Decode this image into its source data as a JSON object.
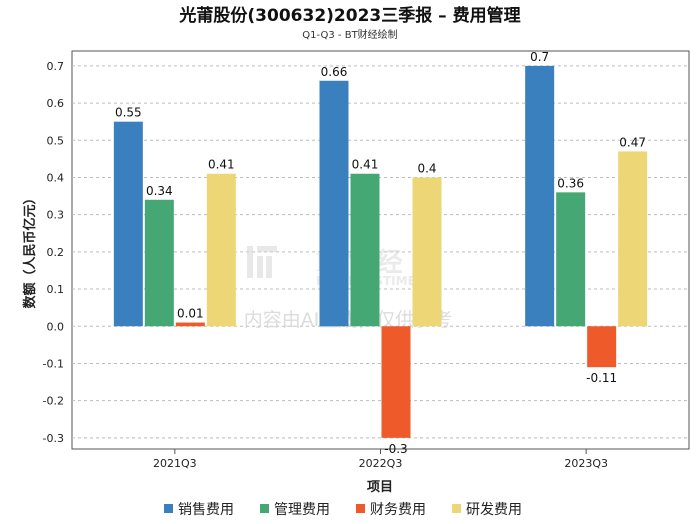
{
  "chart_data": {
    "type": "bar",
    "title": "光莆股份(300632)2023三季报 – 费用管理",
    "subtitle": "Q1-Q3 - BT财经绘制",
    "xlabel": "项目",
    "ylabel": "数额（人民币亿元）",
    "categories": [
      "2021Q3",
      "2022Q3",
      "2023Q3"
    ],
    "series": [
      {
        "name": "销售费用",
        "color": "#3a80bf",
        "values": [
          0.55,
          0.66,
          0.7
        ]
      },
      {
        "name": "管理费用",
        "color": "#45a874",
        "values": [
          0.34,
          0.41,
          0.36
        ]
      },
      {
        "name": "财务费用",
        "color": "#ee5a2a",
        "values": [
          0.01,
          -0.3,
          -0.11
        ]
      },
      {
        "name": "研发费用",
        "color": "#ecd675",
        "values": [
          0.41,
          0.4,
          0.47
        ]
      }
    ],
    "ylim": [
      -0.33,
      0.74
    ],
    "yticks": [
      -0.3,
      -0.2,
      -0.1,
      0,
      0.1,
      0.2,
      0.3,
      0.4,
      0.5,
      0.6,
      0.7
    ],
    "yticklabels": [
      "-0.3",
      "-0.2",
      "-0.1",
      "0.0",
      "0.1",
      "0.2",
      "0.3",
      "0.4",
      "0.5",
      "0.6",
      "0.7"
    ],
    "grid": true,
    "legend_position": "bottom"
  },
  "watermark": {
    "logo_text": "BT财经",
    "logo_sub": "BUSINESSTIMES",
    "notice": "内容由AI生成，仅供参考"
  }
}
